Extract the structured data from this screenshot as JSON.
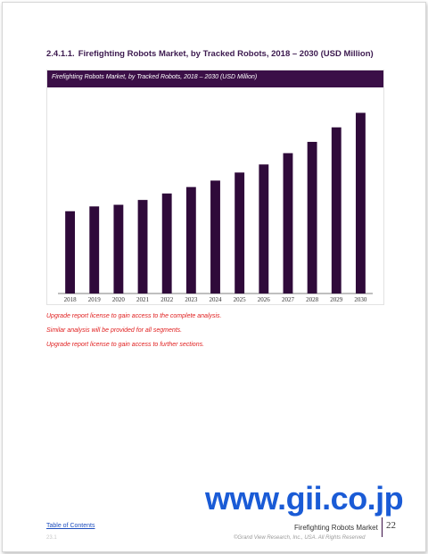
{
  "heading": {
    "number": "2.4.1.1.",
    "title": "Firefighting Robots Market, by Tracked Robots, 2018 – 2030 (USD Million)"
  },
  "chart_data": {
    "type": "bar",
    "title": "Firefighting Robots Market, by Tracked Robots, 2018 – 2030 (USD Million)",
    "categories": [
      "2018",
      "2019",
      "2020",
      "2021",
      "2022",
      "2023",
      "2024",
      "2025",
      "2026",
      "2027",
      "2028",
      "2029",
      "2030"
    ],
    "values": [
      0.51,
      0.54,
      0.55,
      0.58,
      0.62,
      0.66,
      0.7,
      0.75,
      0.8,
      0.87,
      0.94,
      1.03,
      1.12
    ],
    "ylim": [
      0,
      1.2
    ],
    "xlabel": "",
    "ylabel": "",
    "grid": false,
    "legend": "none",
    "bar_color": "#2f0a3a",
    "axis_color": "#555555"
  },
  "notices": [
    "Upgrade report license to gain access to the complete analysis.",
    "Similar analysis will be provided for all segments.",
    "Upgrade report license to gain access to further sections."
  ],
  "watermark": "www.gii.co.jp",
  "footer": {
    "toc_link": "Table of Contents",
    "sub_label": "23.1",
    "report_title": "Firefighting Robots Market",
    "page_number": "22",
    "copyright": "©Grand View Research, Inc., USA. All Rights Reserved"
  },
  "colors": {
    "accent": "#3b0f47",
    "notice": "#e02020",
    "link": "#1f4fbf",
    "watermark": "#1a5bd6"
  }
}
